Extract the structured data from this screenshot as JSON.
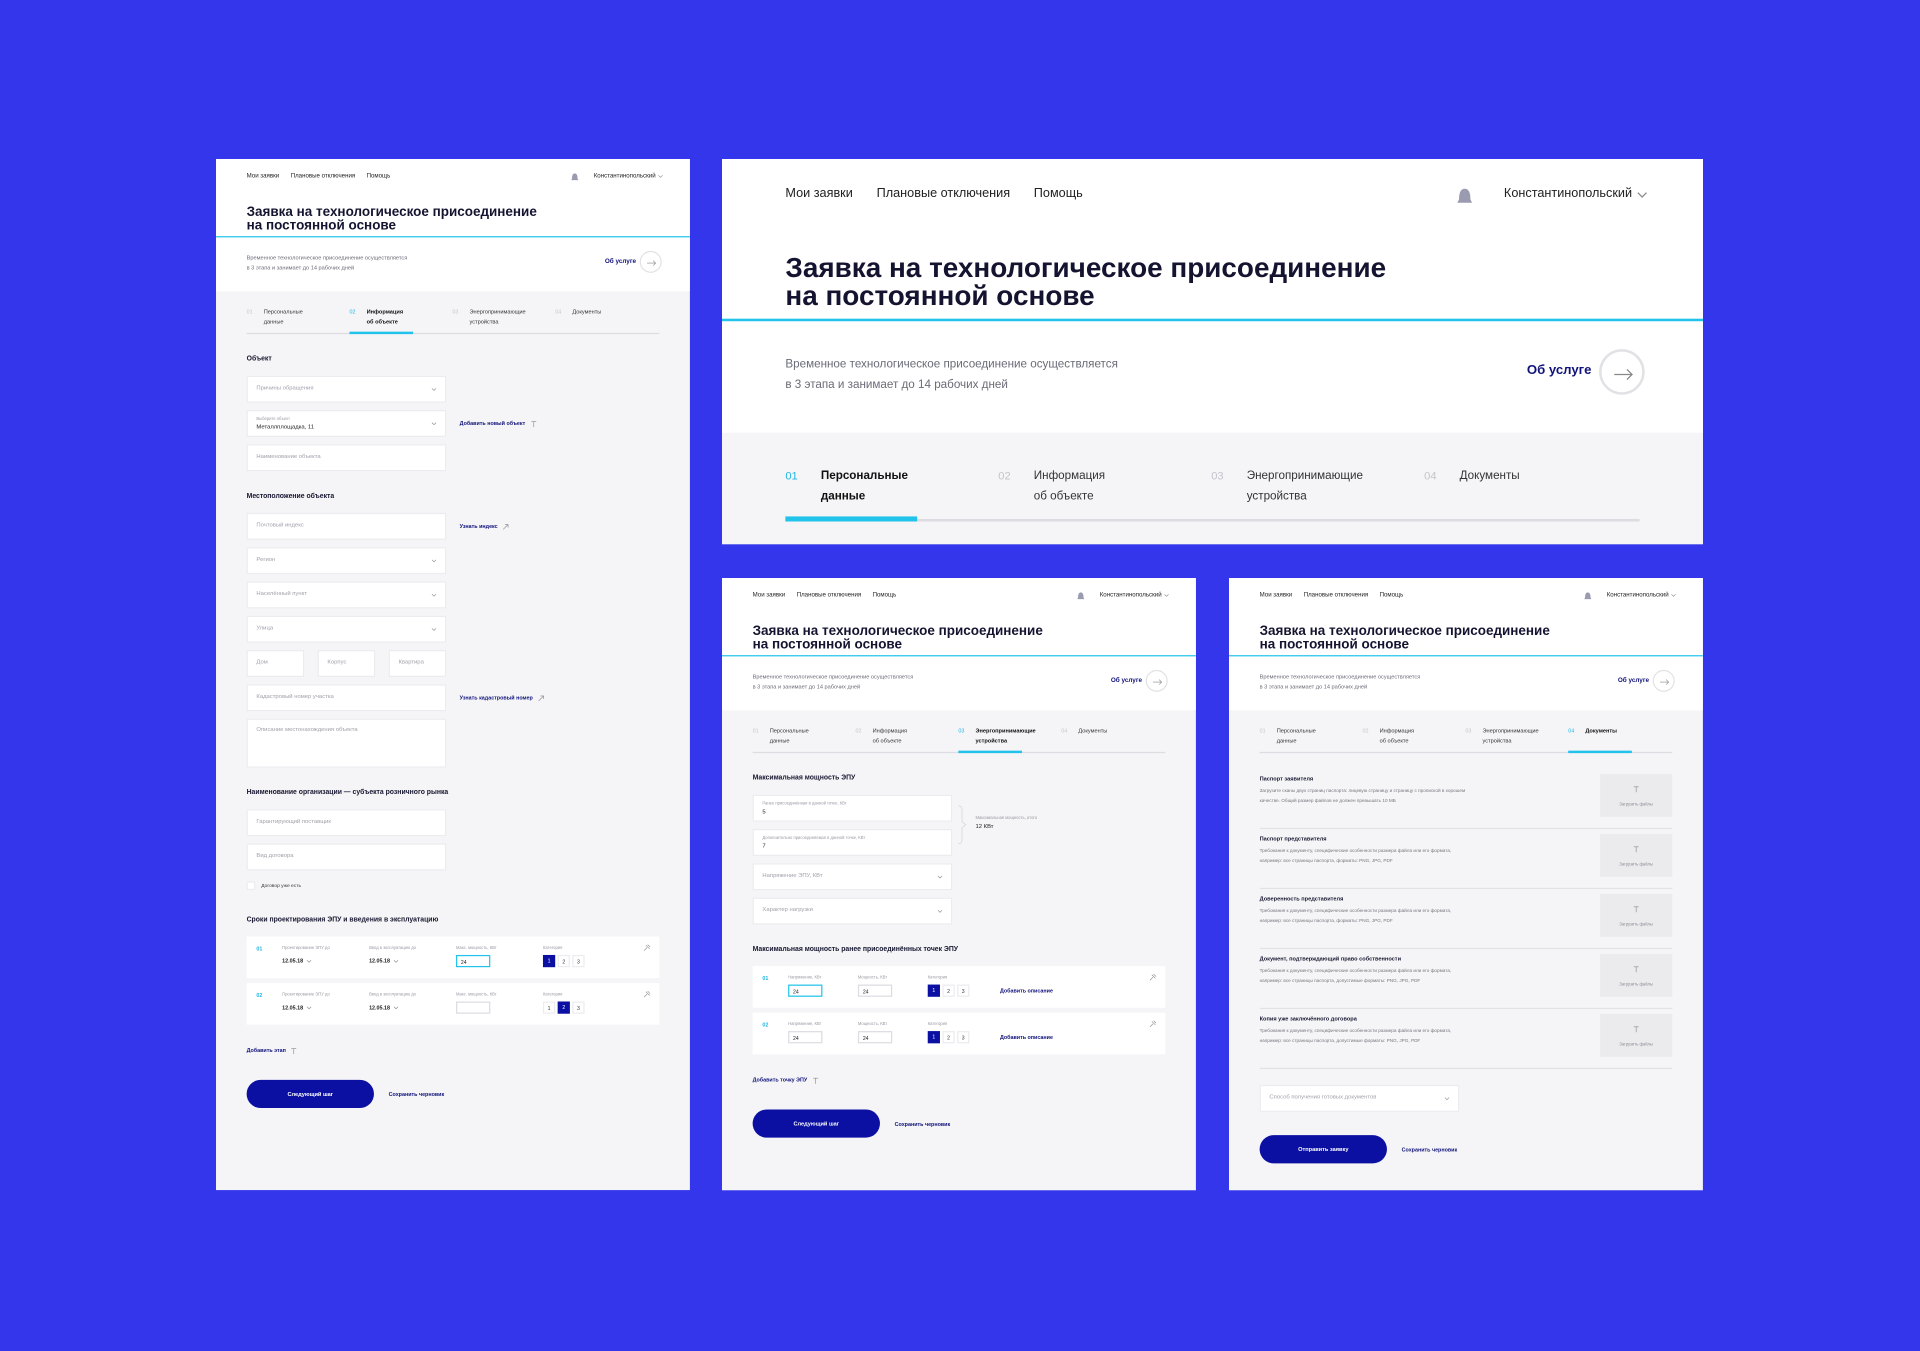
{
  "panels": [
    {
      "header": {
        "nav": [
          "Мои заявки",
          "Плановые отключения",
          "Помощь"
        ],
        "user": "Константинопольский",
        "title": [
          "Заявка на технологическое присоединение",
          "на постоянной основе"
        ],
        "subtitle": [
          "Временное технологическое присоединение осуществляется",
          "в 3 этапа и занимает до 14 рабочих дней"
        ],
        "about": "Об услуге"
      },
      "steps": [
        {
          "num": "01",
          "label": [
            "Персональные",
            "данные"
          ]
        },
        {
          "num": "02",
          "label": [
            "Информация",
            "об объекте"
          ]
        },
        {
          "num": "03",
          "label": [
            "Энергопринимающие",
            "устройства"
          ]
        },
        {
          "num": "04",
          "label": [
            "Документы"
          ]
        }
      ],
      "active_step": "02",
      "form": {
        "sections": [
          {
            "heading": "Объект",
            "fields": [
              {
                "type": "select",
                "placeholder": "Причины обращения"
              },
              {
                "type": "select",
                "label": "Выберите объект",
                "value": "Металлплощадка, 11",
                "link": "Добавить новый объект"
              },
              {
                "type": "input",
                "placeholder": "Наименование объекта"
              }
            ]
          },
          {
            "heading": "Местоположение объекта",
            "fields": [
              {
                "type": "input",
                "placeholder": "Почтовый индекс",
                "link": "Узнать индекс"
              },
              {
                "type": "select",
                "placeholder": "Регион"
              },
              {
                "type": "select",
                "placeholder": "Населённый пункт"
              },
              {
                "type": "select",
                "placeholder": "Улица"
              },
              {
                "type": "inputs",
                "placeholders": [
                  "Дом",
                  "Корпус",
                  "Квартира"
                ]
              },
              {
                "type": "input",
                "placeholder": "Кадастровый номер участка",
                "link": "Узнать кадастровый номер"
              },
              {
                "type": "textarea",
                "placeholder": "Описание местонахождения объекта"
              }
            ]
          },
          {
            "heading": "Наименование организации — субъекта розничного рынка",
            "fields": [
              {
                "type": "input",
                "placeholder": "Гарантирующий поставщик"
              },
              {
                "type": "input",
                "placeholder": "Вид договора"
              },
              {
                "type": "checkbox",
                "label": "Договор уже есть"
              }
            ]
          },
          {
            "heading": "Сроки проектирования ЭПУ и введения в эксплуатацию",
            "fields": [
              {
                "type": "rows",
                "rows": [
                  {
                    "num": "01",
                    "cells": [
                      {
                        "type": "date",
                        "label": "Проектирование ЭПУ до",
                        "value": "12.05.18"
                      },
                      {
                        "type": "date",
                        "label": "Ввод в эксплуатацию до",
                        "value": "12.05.18"
                      },
                      {
                        "type": "input",
                        "label": "Макс. мощность, КВт",
                        "value": "24",
                        "focused": true
                      },
                      {
                        "type": "choice",
                        "label": "Категория",
                        "options": [
                          "1",
                          "2",
                          "3"
                        ],
                        "selected": "1"
                      }
                    ]
                  },
                  {
                    "num": "02",
                    "cells": [
                      {
                        "type": "date",
                        "label": "Проектирование ЭПУ до",
                        "value": "12.05.18"
                      },
                      {
                        "type": "date",
                        "label": "Ввод в эксплуатацию до",
                        "value": "12.05.18"
                      },
                      {
                        "type": "input",
                        "label": "Макс. мощность, КВт"
                      },
                      {
                        "type": "choice",
                        "label": "Категория",
                        "options": [
                          "1",
                          "2",
                          "3"
                        ],
                        "selected": "2"
                      }
                    ]
                  }
                ]
              },
              {
                "type": "link",
                "text": "Добавить этап"
              }
            ]
          }
        ],
        "buttons": {
          "primary": "Следующий шаг",
          "secondary": "Сохранить черновик"
        }
      }
    },
    {
      "header": {
        "nav": [
          "Мои заявки",
          "Плановые отключения",
          "Помощь"
        ],
        "user": "Константинопольский",
        "title": [
          "Заявка на технологическое присоединение",
          "на постоянной основе"
        ],
        "subtitle": [
          "Временное технологическое присоединение осуществляется",
          "в 3 этапа и занимает до 14 рабочих дней"
        ],
        "about": "Об услуге"
      },
      "steps": [
        {
          "num": "01",
          "label": [
            "Персональные",
            "данные"
          ]
        },
        {
          "num": "02",
          "label": [
            "Информация",
            "об объекте"
          ]
        },
        {
          "num": "03",
          "label": [
            "Энергопринимающие",
            "устройства"
          ]
        },
        {
          "num": "04",
          "label": [
            "Документы"
          ]
        }
      ],
      "active_step": "01"
    },
    {
      "header": {
        "nav": [
          "Мои заявки",
          "Плановые отключения",
          "Помощь"
        ],
        "user": "Константинопольский",
        "title": [
          "Заявка на технологическое присоединение",
          "на постоянной основе"
        ],
        "subtitle": [
          "Временное технологическое присоединение осуществляется",
          "в 3 этапа и занимает до 14 рабочих дней"
        ],
        "about": "Об услуге"
      },
      "steps": [
        {
          "num": "01",
          "label": [
            "Персональные",
            "данные"
          ]
        },
        {
          "num": "02",
          "label": [
            "Информация",
            "об объекте"
          ]
        },
        {
          "num": "03",
          "label": [
            "Энергопринимающие",
            "устройства"
          ]
        },
        {
          "num": "04",
          "label": [
            "Документы"
          ]
        }
      ],
      "active_step": "03",
      "form": {
        "sections": [
          {
            "heading": "Максимальная мощность ЭПУ",
            "fields": [
              {
                "type": "input",
                "label": "Ранее присоединённая в данной точке, КВт",
                "value": "5"
              },
              {
                "type": "input",
                "label": "Дополнительно присоединяемая в данной точке, КВт",
                "value": "7"
              },
              {
                "type": "select",
                "placeholder": "Напряжение ЭПУ, КВт"
              },
              {
                "type": "select",
                "placeholder": "Характер нагрузки"
              }
            ],
            "total": {
              "label": "Максимальная мощность, итого",
              "value": "12 КВт"
            }
          },
          {
            "heading": "Максимальная мощность ранее присоединённых точек ЭПУ",
            "fields": [
              {
                "type": "rows",
                "rows": [
                  {
                    "num": "01",
                    "cells": [
                      {
                        "type": "input",
                        "label": "Напряжение, КВт",
                        "value": "24",
                        "focused": true
                      },
                      {
                        "type": "input",
                        "label": "Мощность, КВт",
                        "value": "24"
                      },
                      {
                        "type": "choice",
                        "label": "Категория",
                        "options": [
                          "1",
                          "2",
                          "3"
                        ],
                        "selected": "1"
                      },
                      {
                        "type": "link",
                        "text": "Добавить описание"
                      }
                    ]
                  },
                  {
                    "num": "02",
                    "cells": [
                      {
                        "type": "input",
                        "label": "Напряжение, КВт",
                        "value": "24"
                      },
                      {
                        "type": "input",
                        "label": "Мощность, КВт",
                        "value": "24"
                      },
                      {
                        "type": "choice",
                        "label": "Категория",
                        "options": [
                          "1",
                          "2",
                          "3"
                        ],
                        "selected": "1"
                      },
                      {
                        "type": "link",
                        "text": "Добавить описание"
                      }
                    ]
                  }
                ]
              },
              {
                "type": "link",
                "text": "Добавить точку ЭПУ"
              }
            ]
          }
        ],
        "buttons": {
          "primary": "Следующий шаг",
          "secondary": "Сохранить черновик"
        }
      }
    },
    {
      "header": {
        "nav": [
          "Мои заявки",
          "Плановые отключения",
          "Помощь"
        ],
        "user": "Константинопольский",
        "title": [
          "Заявка на технологическое присоединение",
          "на постоянной основе"
        ],
        "subtitle": [
          "Временное технологическое присоединение осуществляется",
          "в 3 этапа и занимает до 14 рабочих дней"
        ],
        "about": "Об услуге"
      },
      "steps": [
        {
          "num": "01",
          "label": [
            "Персональные",
            "данные"
          ]
        },
        {
          "num": "02",
          "label": [
            "Информация",
            "об объекте"
          ]
        },
        {
          "num": "03",
          "label": [
            "Энергопринимающие",
            "устройства"
          ]
        },
        {
          "num": "04",
          "label": [
            "Документы"
          ]
        }
      ],
      "active_step": "04",
      "form": {
        "documents": [
          {
            "title": "Паспорт заявителя",
            "description": [
              "Загрузите сканы двух страниц паспорта: лицевую страницу и страницу с пропиской в хорошем",
              "качестве. Общий размер файлов не должен превышать 10 МБ"
            ],
            "upload": "Загрузить файлы"
          },
          {
            "title": "Паспорт представителя",
            "description": [
              "Требования к документу, специфические особенности размера файла или его формата,",
              "например: все страницы паспорта, форматы: PNG, JPG, PDF"
            ],
            "upload": "Загрузить файлы"
          },
          {
            "title": "Доверенность представителя",
            "description": [
              "Требования к документу, специфические особенности размера файла или его формата,",
              "например: все страницы паспорта, форматы: PNG, JPG, PDF"
            ],
            "upload": "Загрузить файлы"
          },
          {
            "title": "Документ, подтверждающий право собственности",
            "description": [
              "Требования к документу, специфические особенности размера файла или его формата,",
              "например: все страницы паспорта, допустимые форматы: PNG, JPG, PDF"
            ],
            "upload": "Загрузить файлы"
          },
          {
            "title": "Копия уже заключённого договора",
            "description": [
              "Требования к документу, специфические особенности размера файла или его формата,",
              "например: все страницы паспорта, допустимые форматы: PNG, JPG, PDF"
            ],
            "upload": "Загрузить файлы"
          }
        ],
        "sections": [
          {
            "fields": [
              {
                "type": "select",
                "placeholder": "Способ получения готовых документов"
              }
            ]
          }
        ],
        "buttons": {
          "primary": "Отправить заявку",
          "secondary": "Сохранить черновик"
        }
      }
    }
  ]
}
